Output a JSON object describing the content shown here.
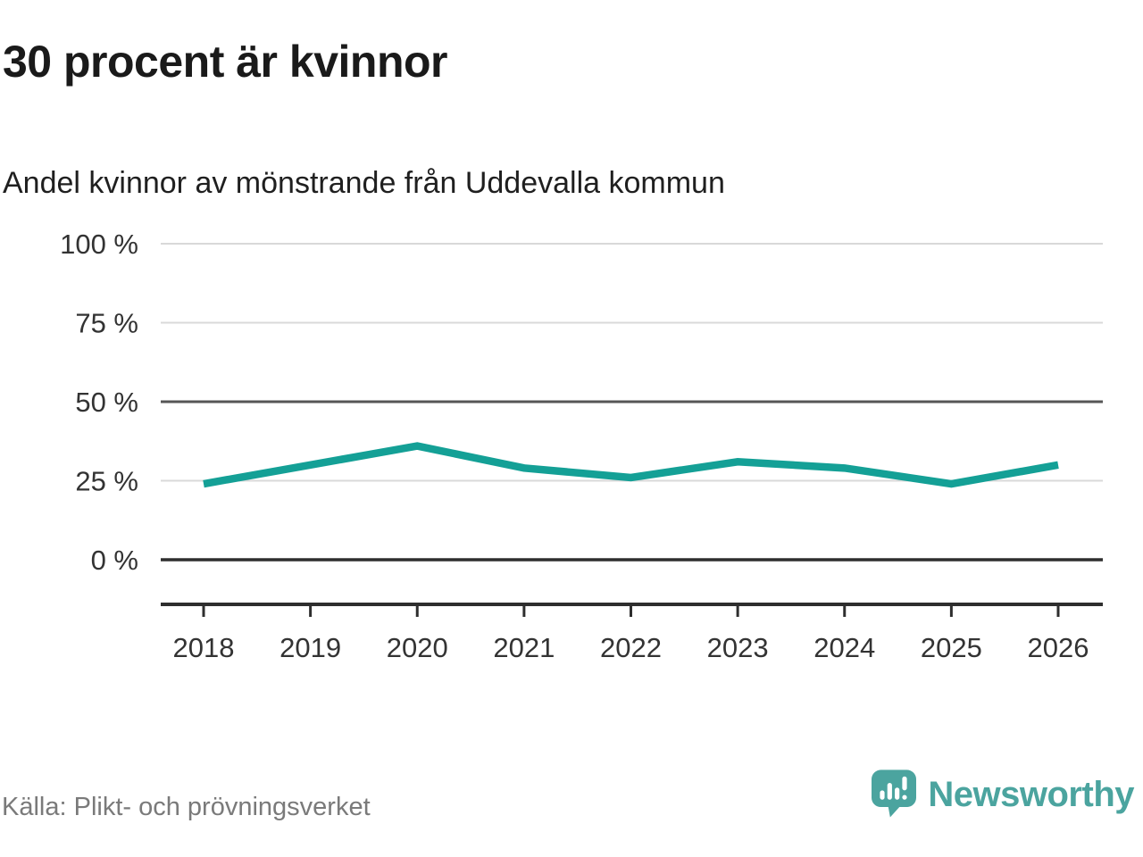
{
  "header": {
    "title": "30 procent är kvinnor",
    "subtitle": "Andel kvinnor av mönstrande från Uddevalla kommun"
  },
  "footer": {
    "source": "Källa: Plikt- och prövningsverket",
    "logo_text": "Newsworthy",
    "logo_icon": "speech-bubble-bar-chart-icon"
  },
  "colors": {
    "line": "#14a096",
    "grid_light": "#d9d9d9",
    "grid_mid": "#565656",
    "grid_zero": "#2e2e2e",
    "axis": "#2e2e2e",
    "tick_text": "#333333",
    "title_text": "#1a1a1a",
    "source_text": "#7a7a7a",
    "logo": "#4ba49f"
  },
  "chart_data": {
    "type": "line",
    "title": "30 procent är kvinnor",
    "subtitle": "Andel kvinnor av mönstrande från Uddevalla kommun",
    "categories": [
      "2018",
      "2019",
      "2020",
      "2021",
      "2022",
      "2023",
      "2024",
      "2025",
      "2026"
    ],
    "series": [
      {
        "name": "Andel kvinnor av mönstrande",
        "values": [
          24,
          30,
          36,
          29,
          26,
          31,
          29,
          24,
          30
        ]
      }
    ],
    "xlabel": "",
    "ylabel": "",
    "ylim": [
      0,
      100
    ],
    "yticks": [
      0,
      25,
      50,
      75,
      100
    ],
    "ytick_labels": [
      "0 %",
      "25 %",
      "50 %",
      "75 %",
      "100 %"
    ],
    "grid": "horizontal-only",
    "legend": "none",
    "source": "Källa: Plikt- och prövningsverket"
  }
}
